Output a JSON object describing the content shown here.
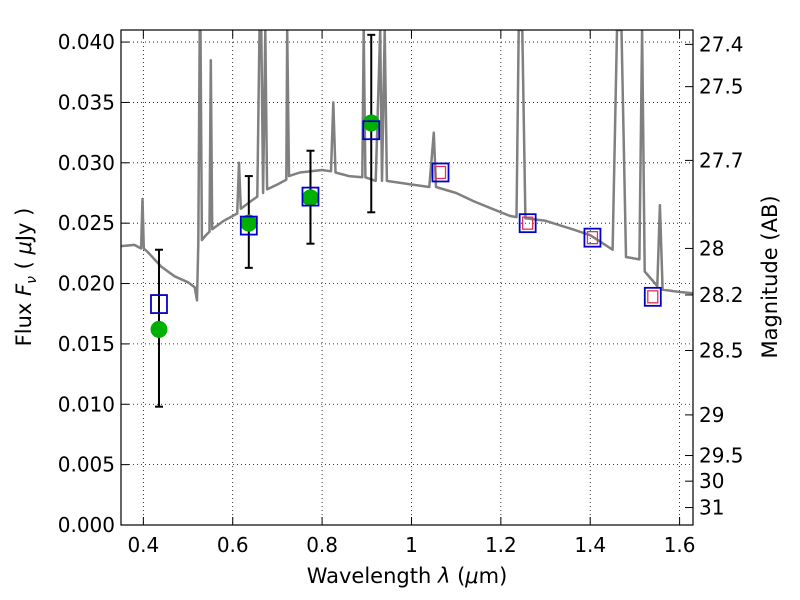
{
  "chart_data": {
    "type": "scatter",
    "xlabel": "Wavelength  λ (μm)",
    "ylabel": "Flux  F_ν  ( μJy )",
    "ylabel_parts": {
      "prefix": "Flux  ",
      "F": "F",
      "nu": "ν",
      "unit_open": "  ( ",
      "mu": "μ",
      "unit_close": "Jy )"
    },
    "xlabel_parts": {
      "prefix": "Wavelength  ",
      "lambda": "λ",
      "paren_open": " (",
      "mu": "μ",
      "unit": "m)"
    },
    "y2label": "Magnitude (AB)",
    "xlim": [
      0.35,
      1.63
    ],
    "ylim": [
      0.0,
      0.041
    ],
    "x_ticks": [
      0.4,
      0.6,
      0.8,
      1.0,
      1.2,
      1.4,
      1.6
    ],
    "x_tick_labels": [
      "0.4",
      "0.6",
      "0.8",
      "1",
      "1.2",
      "1.4",
      "1.6"
    ],
    "y_ticks": [
      0.0,
      0.005,
      0.01,
      0.015,
      0.02,
      0.025,
      0.03,
      0.035,
      0.04
    ],
    "y_tick_labels": [
      "0.000",
      "0.005",
      "0.010",
      "0.015",
      "0.020",
      "0.025",
      "0.030",
      "0.035",
      "0.040"
    ],
    "y2_ticks": [
      {
        "label": "27.4",
        "mag": 27.4
      },
      {
        "label": "27.5",
        "mag": 27.5
      },
      {
        "label": "27.7",
        "mag": 27.7
      },
      {
        "label": "28",
        "mag": 28.0
      },
      {
        "label": "28.2",
        "mag": 28.2
      },
      {
        "label": "28.5",
        "mag": 28.5
      },
      {
        "label": "29",
        "mag": 29.0
      },
      {
        "label": "29.5",
        "mag": 29.5
      },
      {
        "label": "30",
        "mag": 30.0
      },
      {
        "label": "31",
        "mag": 31.0
      }
    ],
    "grid": true,
    "colors": {
      "model": "#808080",
      "observed": "#00b000",
      "model_box": "#0000cc",
      "ir_box": "#dd3355",
      "errorbar": "#000000"
    },
    "model_spectrum": [
      [
        0.35,
        0.0231
      ],
      [
        0.38,
        0.0232
      ],
      [
        0.395,
        0.0229
      ],
      [
        0.398,
        0.027
      ],
      [
        0.401,
        0.0229
      ],
      [
        0.41,
        0.0226
      ],
      [
        0.44,
        0.0214
      ],
      [
        0.47,
        0.0206
      ],
      [
        0.5,
        0.0201
      ],
      [
        0.515,
        0.0197
      ],
      [
        0.52,
        0.0186
      ],
      [
        0.523,
        0.0233
      ],
      [
        0.526,
        0.041
      ],
      [
        0.528,
        0.041
      ],
      [
        0.531,
        0.0236
      ],
      [
        0.54,
        0.024
      ],
      [
        0.548,
        0.0243
      ],
      [
        0.551,
        0.0385
      ],
      [
        0.554,
        0.0245
      ],
      [
        0.58,
        0.0252
      ],
      [
        0.61,
        0.0258
      ],
      [
        0.614,
        0.03
      ],
      [
        0.618,
        0.0262
      ],
      [
        0.64,
        0.0268
      ],
      [
        0.655,
        0.0272
      ],
      [
        0.66,
        0.041
      ],
      [
        0.664,
        0.041
      ],
      [
        0.668,
        0.0275
      ],
      [
        0.673,
        0.041
      ],
      [
        0.677,
        0.0278
      ],
      [
        0.7,
        0.0282
      ],
      [
        0.72,
        0.0286
      ],
      [
        0.722,
        0.041
      ],
      [
        0.726,
        0.0289
      ],
      [
        0.75,
        0.0292
      ],
      [
        0.8,
        0.0294
      ],
      [
        0.82,
        0.0293
      ],
      [
        0.825,
        0.035
      ],
      [
        0.83,
        0.0292
      ],
      [
        0.86,
        0.0289
      ],
      [
        0.89,
        0.0288
      ],
      [
        0.893,
        0.041
      ],
      [
        0.897,
        0.0288
      ],
      [
        0.92,
        0.0285
      ],
      [
        0.93,
        0.041
      ],
      [
        0.934,
        0.0285
      ],
      [
        0.94,
        0.041
      ],
      [
        0.945,
        0.0285
      ],
      [
        1.0,
        0.0282
      ],
      [
        1.04,
        0.028
      ],
      [
        1.05,
        0.0325
      ],
      [
        1.055,
        0.028
      ],
      [
        1.1,
        0.0275
      ],
      [
        1.14,
        0.0268
      ],
      [
        1.18,
        0.0262
      ],
      [
        1.22,
        0.0256
      ],
      [
        1.235,
        0.0255
      ],
      [
        1.24,
        0.041
      ],
      [
        1.248,
        0.041
      ],
      [
        1.255,
        0.0254
      ],
      [
        1.3,
        0.0252
      ],
      [
        1.36,
        0.0245
      ],
      [
        1.4,
        0.024
      ],
      [
        1.45,
        0.0228
      ],
      [
        1.46,
        0.041
      ],
      [
        1.47,
        0.041
      ],
      [
        1.48,
        0.0222
      ],
      [
        1.51,
        0.022
      ],
      [
        1.516,
        0.041
      ],
      [
        1.522,
        0.021
      ],
      [
        1.55,
        0.0198
      ],
      [
        1.556,
        0.0265
      ],
      [
        1.562,
        0.0195
      ],
      [
        1.6,
        0.0193
      ],
      [
        1.63,
        0.0192
      ]
    ],
    "observed": [
      {
        "x": 0.435,
        "y": 0.0162,
        "ylo": 0.0098,
        "yhi": 0.0228
      },
      {
        "x": 0.636,
        "y": 0.025,
        "ylo": 0.0213,
        "yhi": 0.0289
      },
      {
        "x": 0.774,
        "y": 0.0271,
        "ylo": 0.0233,
        "yhi": 0.031
      },
      {
        "x": 0.91,
        "y": 0.0333,
        "ylo": 0.0259,
        "yhi": 0.0406
      }
    ],
    "model_points": [
      {
        "x": 0.435,
        "y": 0.0183,
        "ir": false
      },
      {
        "x": 0.636,
        "y": 0.0248,
        "ir": false
      },
      {
        "x": 0.774,
        "y": 0.0272,
        "ir": false
      },
      {
        "x": 0.91,
        "y": 0.0327,
        "ir": false
      },
      {
        "x": 1.065,
        "y": 0.0292,
        "ir": true
      },
      {
        "x": 1.26,
        "y": 0.025,
        "ir": true
      },
      {
        "x": 1.405,
        "y": 0.0238,
        "ir": true
      },
      {
        "x": 1.54,
        "y": 0.0189,
        "ir": true
      }
    ]
  }
}
